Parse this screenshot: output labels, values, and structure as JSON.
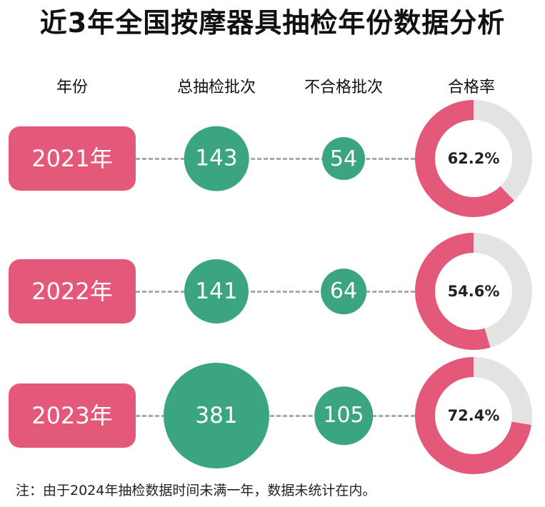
{
  "title": "近3年全国按摩器具抽检年份数据分析",
  "headers": {
    "year": "年份",
    "total": "总抽检批次",
    "failed": "不合格批次",
    "pass_rate": "合格率"
  },
  "colors": {
    "accent": "#e4587a",
    "bubble": "#3aa57f",
    "donut_rest": "#e3e3e3"
  },
  "chart_data": {
    "type": "table",
    "rows": [
      {
        "year": "2021年",
        "total": 143,
        "failed": 54,
        "pass_rate": 62.2,
        "pass_rate_label": "62.2%"
      },
      {
        "year": "2022年",
        "total": 141,
        "failed": 64,
        "pass_rate": 54.6,
        "pass_rate_label": "54.6%"
      },
      {
        "year": "2023年",
        "total": 381,
        "failed": 105,
        "pass_rate": 72.4,
        "pass_rate_label": "72.4%"
      }
    ]
  },
  "note": "注：由于2024年抽检数据时间未满一年，数据未统计在内。"
}
